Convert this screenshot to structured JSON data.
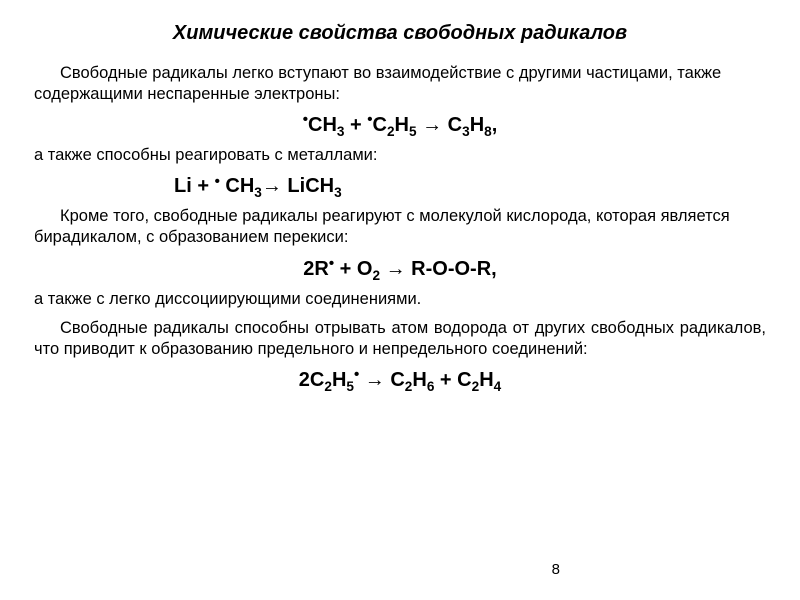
{
  "title": "Химические свойства свободных радикалов",
  "p1": "Свободные радикалы легко вступают во взаимодействие с другими частицами, также содержащими неспаренные электроны:",
  "eq1": {
    "ch3": "CH",
    "ch3_sub": "3",
    "plus1": " + ",
    "c2": "C",
    "c2_sub": "2",
    "h5": "H",
    "h5_sub": "5",
    "arrow": "  →  ",
    "c3": "C",
    "c3_sub": "3",
    "h8": "H",
    "h8_sub": "8",
    "comma": ","
  },
  "p2": "а также способны реагировать с металлами:",
  "eq2": {
    "li": "Li + ",
    "ch3": " CH",
    "ch3_sub": "3",
    "arrow": "→ ",
    "lich3": "LiCH",
    "lich3_sub": "3"
  },
  "p3": "Кроме того, свободные радикалы реагируют с молекулой кислорода, которая является бирадикалом, с образованием перекиси:",
  "eq3": {
    "lhs1": "2R",
    "plus": " + O",
    "o2_sub": "2",
    "arrow": " → ",
    "rhs": "R-O-O-R,"
  },
  "p4": "а также с легко диссоциирующими соединениями.",
  "p5": "Свободные радикалы способны отрывать атом водорода от других свободных радикалов, что приводит к образованию предельного и непредельного соединений:",
  "eq4": {
    "two": "2C",
    "c2a_sub": "2",
    "h5": "H",
    "h5_sub": "5",
    "arrow": " → ",
    "c2b": "C",
    "c2b_sub": "2",
    "h6": "H",
    "h6_sub": "6",
    "plus": " + ",
    "c2c": "C",
    "c2c_sub": "2",
    "h4": "H",
    "h4_sub": "4"
  },
  "page_number": "8"
}
